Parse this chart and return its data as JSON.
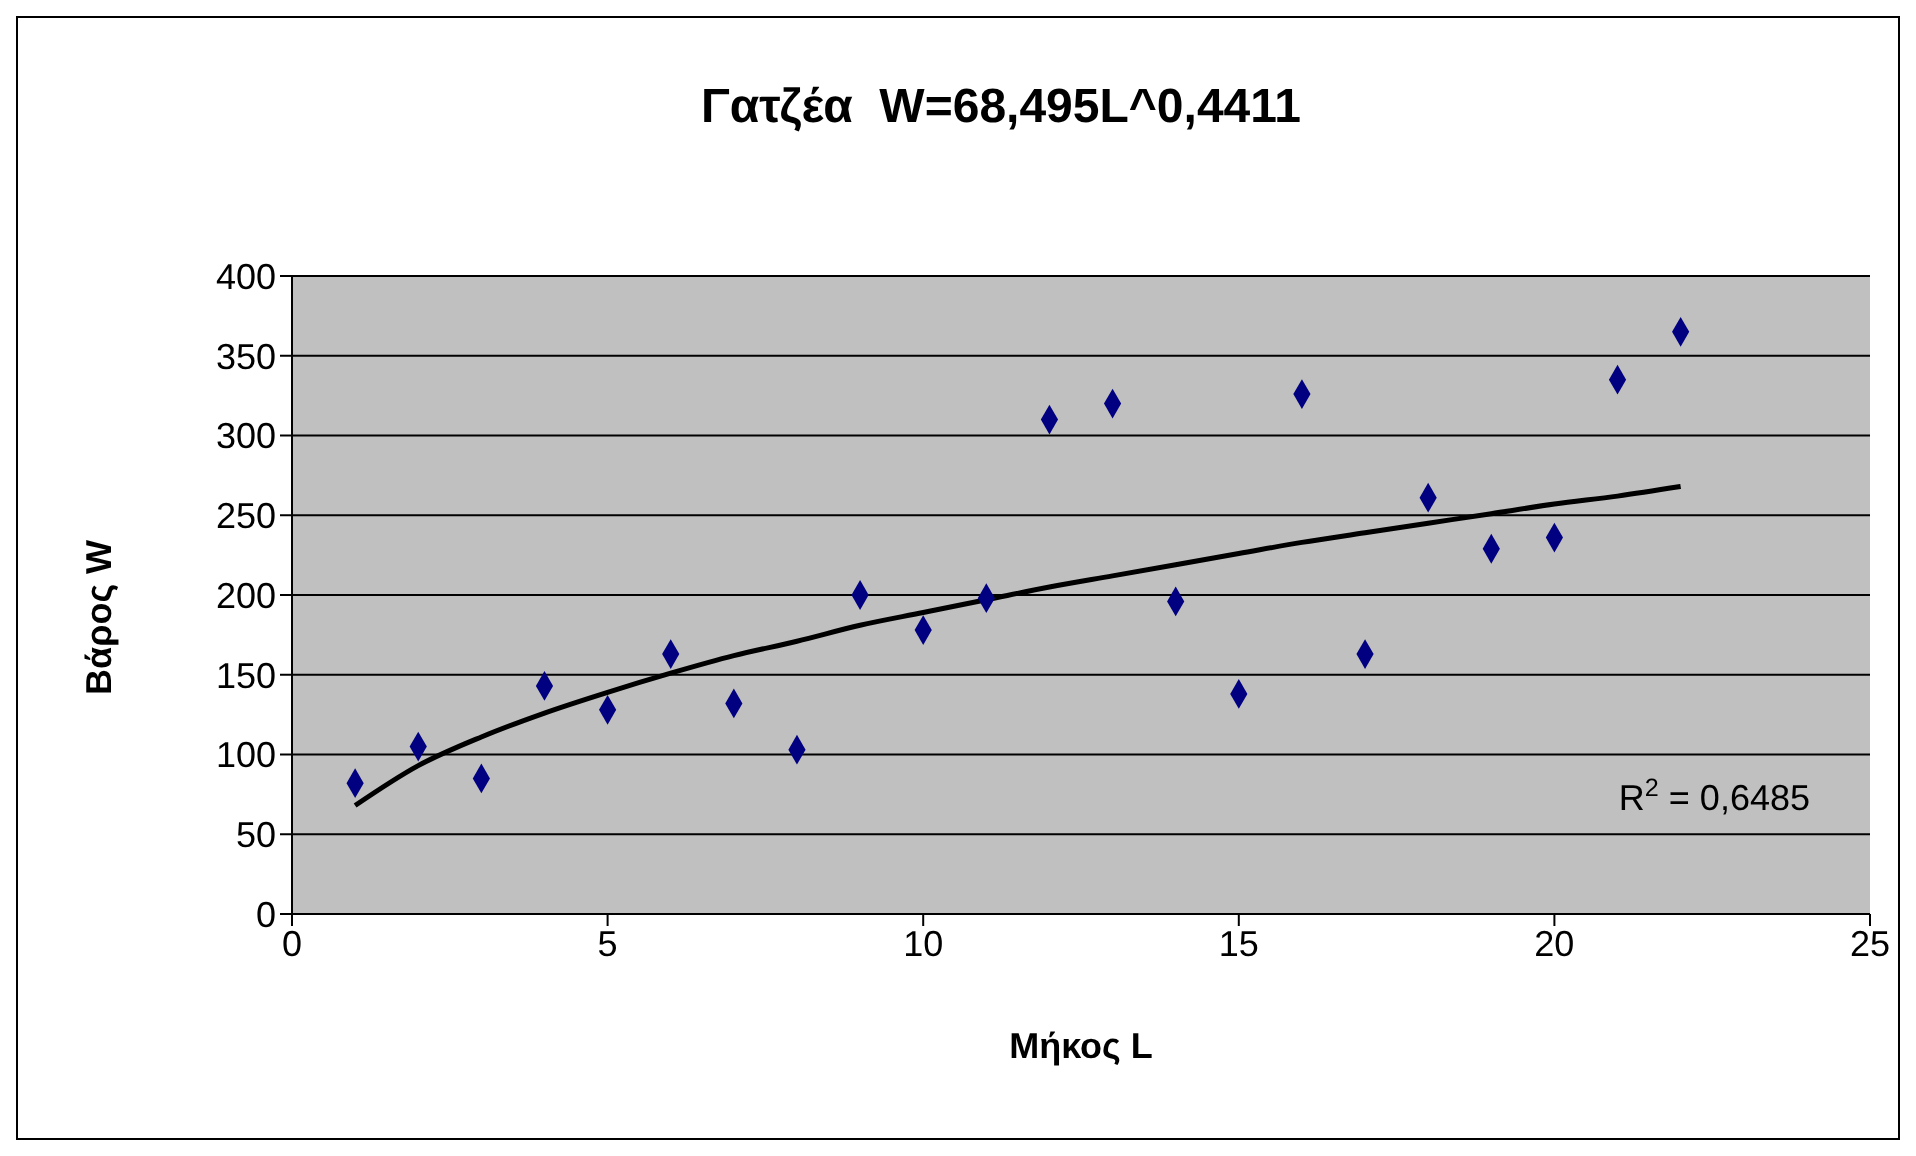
{
  "chart_data": {
    "type": "scatter",
    "title": "Γατζέα  W=68,495L^0,4411",
    "xlabel": "Μήκος L",
    "ylabel": "Βάρος W",
    "x": [
      1,
      2,
      3,
      4,
      5,
      6,
      7,
      8,
      9,
      10,
      11,
      12,
      13,
      14,
      15,
      16,
      17,
      18,
      19,
      20,
      21,
      22
    ],
    "series": [
      {
        "color": "#000080",
        "values": [
          82,
          105,
          85,
          143,
          128,
          163,
          132,
          103,
          200,
          178,
          198,
          310,
          320,
          196,
          138,
          326,
          163,
          261,
          229,
          236,
          335,
          365
        ]
      },
      {
        "type": "line",
        "marker": "none",
        "color": "#000000",
        "x": [
          1,
          2,
          3,
          4,
          5,
          6,
          7,
          8,
          9,
          10,
          11,
          12,
          13,
          14,
          15,
          16,
          17,
          18,
          19,
          20,
          21,
          22
        ],
        "values": [
          68,
          93,
          111,
          126,
          139,
          151,
          162,
          171,
          181,
          189,
          197,
          205,
          212,
          219,
          226,
          233,
          239,
          245,
          251,
          257,
          262,
          268
        ]
      }
    ],
    "annotations": [
      "R$^{2}$ = 0,6485"
    ],
    "xlim": [
      0,
      25
    ],
    "xticks": [
      0,
      5,
      10,
      15,
      20,
      25
    ],
    "ylim": [
      0,
      400
    ],
    "yticks": [
      0,
      50,
      100,
      150,
      200,
      250,
      300,
      350,
      400
    ],
    "grid": "y",
    "marker": "diamond"
  }
}
